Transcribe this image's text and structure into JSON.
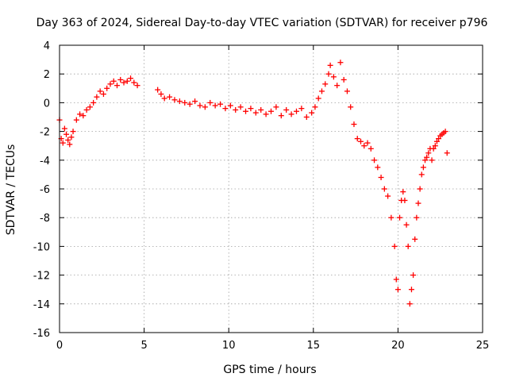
{
  "chart_data": {
    "type": "scatter",
    "title": "Day 363 of 2024, Sidereal Day-to-day VTEC variation (SDTVAR) for receiver p796",
    "xlabel": "GPS time / hours",
    "ylabel": "SDTVAR / TECUs",
    "xlim": [
      0,
      25
    ],
    "ylim": [
      -16,
      4
    ],
    "xticks": [
      0,
      5,
      10,
      15,
      20,
      25
    ],
    "yticks": [
      4,
      2,
      0,
      -2,
      -4,
      -6,
      -8,
      -10,
      -12,
      -14,
      -16
    ],
    "grid": true,
    "marker": "plus",
    "color": "#ff0000",
    "series": [
      {
        "name": "p796 SDTVAR",
        "x": [
          0.0,
          0.1,
          0.2,
          0.3,
          0.4,
          0.5,
          0.6,
          0.7,
          0.8,
          1.0,
          1.2,
          1.4,
          1.6,
          1.8,
          2.0,
          2.2,
          2.4,
          2.6,
          2.8,
          3.0,
          3.2,
          3.4,
          3.6,
          3.8,
          4.0,
          4.2,
          4.4,
          4.6,
          5.8,
          6.0,
          6.2,
          6.5,
          6.8,
          7.1,
          7.4,
          7.7,
          8.0,
          8.3,
          8.6,
          8.9,
          9.2,
          9.5,
          9.8,
          10.1,
          10.4,
          10.7,
          11.0,
          11.3,
          11.6,
          11.9,
          12.2,
          12.5,
          12.8,
          13.1,
          13.4,
          13.7,
          14.0,
          14.3,
          14.6,
          14.9,
          15.1,
          15.3,
          15.5,
          15.7,
          15.9,
          16.0,
          16.2,
          16.4,
          16.6,
          16.8,
          17.0,
          17.2,
          17.4,
          17.6,
          17.8,
          18.0,
          18.2,
          18.4,
          18.6,
          18.8,
          19.0,
          19.2,
          19.4,
          19.6,
          19.8,
          19.9,
          20.0,
          20.1,
          20.2,
          20.3,
          20.4,
          20.5,
          20.6,
          20.7,
          20.8,
          20.9,
          21.0,
          21.1,
          21.2,
          21.3,
          21.4,
          21.5,
          21.6,
          21.7,
          21.8,
          21.9,
          22.0,
          22.1,
          22.2,
          22.3,
          22.4,
          22.5,
          22.6,
          22.7,
          22.8,
          22.9
        ],
        "y": [
          -1.2,
          -2.5,
          -2.8,
          -1.8,
          -2.2,
          -2.6,
          -2.9,
          -2.4,
          -2.0,
          -1.2,
          -0.8,
          -0.9,
          -0.5,
          -0.3,
          0.0,
          0.4,
          0.8,
          0.6,
          1.0,
          1.3,
          1.5,
          1.2,
          1.6,
          1.4,
          1.5,
          1.7,
          1.4,
          1.2,
          0.9,
          0.6,
          0.3,
          0.4,
          0.2,
          0.1,
          0.0,
          -0.1,
          0.1,
          -0.2,
          -0.3,
          0.0,
          -0.2,
          -0.1,
          -0.4,
          -0.2,
          -0.5,
          -0.3,
          -0.6,
          -0.4,
          -0.7,
          -0.5,
          -0.8,
          -0.6,
          -0.3,
          -0.9,
          -0.5,
          -0.8,
          -0.6,
          -0.4,
          -1.0,
          -0.7,
          -0.3,
          0.3,
          0.8,
          1.3,
          2.0,
          2.6,
          1.8,
          1.2,
          2.8,
          1.6,
          0.8,
          -0.3,
          -1.5,
          -2.5,
          -2.7,
          -3.0,
          -2.8,
          -3.2,
          -4.0,
          -4.5,
          -5.2,
          -6.0,
          -6.5,
          -8.0,
          -10.0,
          -12.3,
          -13.0,
          -8.0,
          -6.8,
          -6.2,
          -6.8,
          -8.5,
          -10.0,
          -14.0,
          -13.0,
          -12.0,
          -9.5,
          -8.0,
          -7.0,
          -6.0,
          -5.0,
          -4.5,
          -4.0,
          -3.8,
          -3.5,
          -3.2,
          -4.0,
          -3.2,
          -3.0,
          -2.7,
          -2.5,
          -2.3,
          -2.2,
          -2.1,
          -2.0,
          -3.5
        ]
      }
    ]
  }
}
